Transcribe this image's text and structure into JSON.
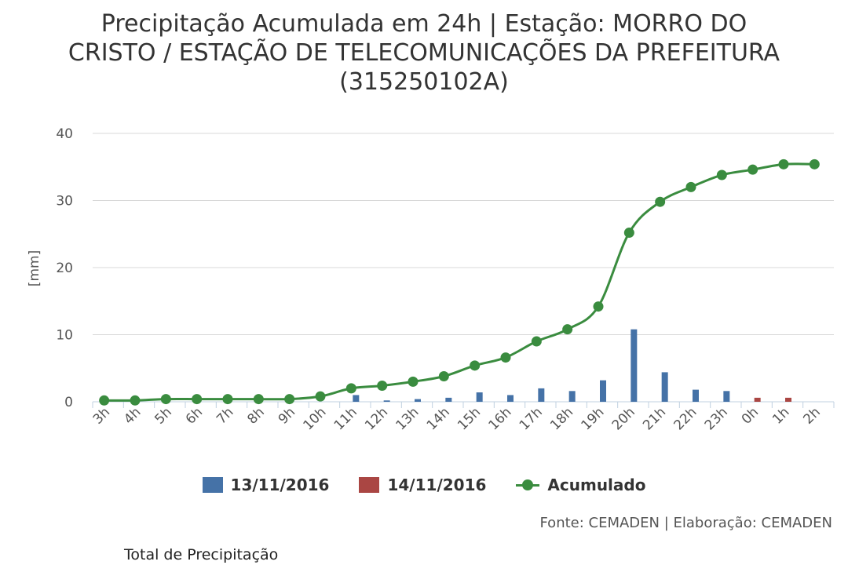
{
  "chart_data": {
    "type": "bar",
    "title": "Precipitação Acumulada em 24h | Estação: MORRO DO\nCRISTO / ESTAÇÃO DE TELECOMUNICAÇÕES DA PREFEITURA\n(315250102A)",
    "ylabel": "[mm]",
    "xlabel": "",
    "ylim": [
      0,
      40
    ],
    "yticks": [
      0,
      10,
      20,
      30,
      40
    ],
    "grid": true,
    "legend_position": "bottom",
    "categories": [
      "3h",
      "4h",
      "5h",
      "6h",
      "7h",
      "8h",
      "9h",
      "10h",
      "11h",
      "12h",
      "13h",
      "14h",
      "15h",
      "16h",
      "17h",
      "18h",
      "19h",
      "20h",
      "21h",
      "22h",
      "23h",
      "0h",
      "1h",
      "2h"
    ],
    "series": [
      {
        "name": "13/11/2016",
        "kind": "bar",
        "color": "#4572a7",
        "values": [
          0,
          0,
          0,
          0,
          0,
          0,
          0,
          0,
          1.0,
          0.2,
          0.4,
          0.6,
          1.4,
          1.0,
          2.0,
          1.6,
          3.2,
          10.8,
          4.4,
          1.8,
          1.6,
          0,
          0,
          0
        ]
      },
      {
        "name": "14/11/2016",
        "kind": "bar",
        "color": "#aa4643",
        "values": [
          0,
          0,
          0,
          0,
          0,
          0,
          0,
          0,
          0,
          0,
          0,
          0,
          0,
          0,
          0,
          0,
          0,
          0,
          0,
          0,
          0,
          0.6,
          0.6,
          0
        ]
      },
      {
        "name": "Acumulado",
        "kind": "line",
        "color": "#3a8c3f",
        "values": [
          0.2,
          0.2,
          0.4,
          0.4,
          0.4,
          0.4,
          0.4,
          0.8,
          2.0,
          2.4,
          3.0,
          3.8,
          5.4,
          6.6,
          9.0,
          10.8,
          14.2,
          25.2,
          29.8,
          32.0,
          33.8,
          34.6,
          35.4,
          35.4
        ]
      }
    ]
  },
  "credits": "Fonte: CEMADEN | Elaboração: CEMADEN",
  "footer_label": "Total de Precipitação"
}
